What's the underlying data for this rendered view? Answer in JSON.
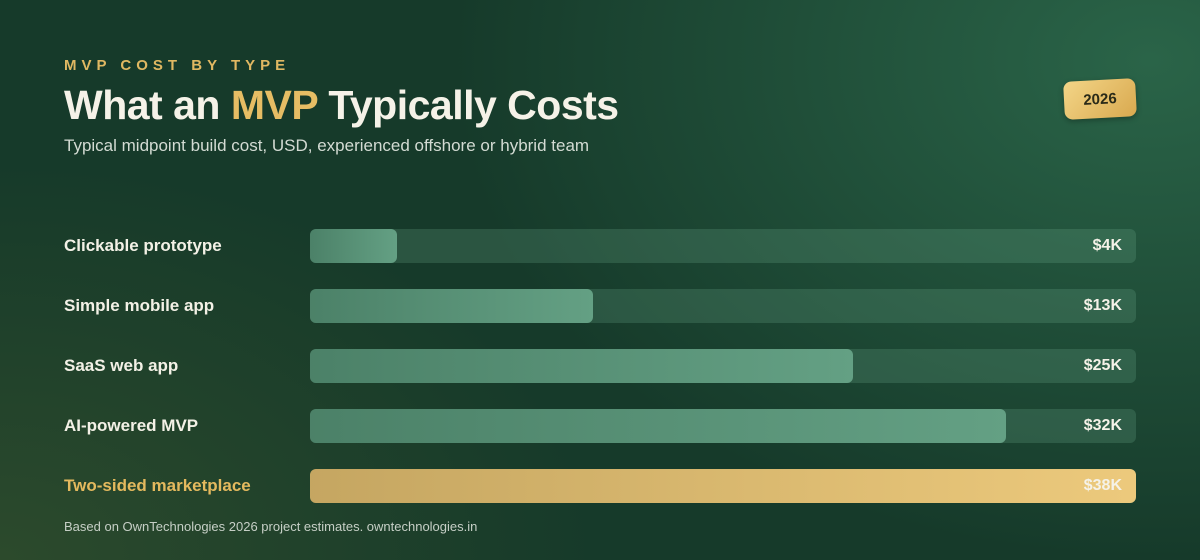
{
  "chart_data": {
    "type": "bar",
    "kicker": "MVP COST BY TYPE",
    "title": [
      "What an",
      "MVP",
      "Typically Costs"
    ],
    "subtitle": "Typical midpoint build cost, USD, experienced offshore or hybrid team",
    "badge": "2026",
    "categories": [
      "Clickable prototype",
      "Simple mobile app",
      "SaaS web app",
      "AI-powered MVP",
      "Two-sided marketplace"
    ],
    "values": [
      4,
      13,
      25,
      32,
      38
    ],
    "value_labels": [
      "$4K",
      "$13K",
      "$25K",
      "$32K",
      "$38K"
    ],
    "colors": [
      "#5a9a7c",
      "#5a9a7c",
      "#5a9a7c",
      "#5a9a7c",
      "#ebc674"
    ],
    "label_colors": [
      "#f3f1e6",
      "#f3f1e6",
      "#f3f1e6",
      "#f3f1e6",
      "#e4b95e"
    ],
    "xlim": [
      0,
      38
    ],
    "source": "Based on OwnTechnologies 2026 project estimates. owntechnologies.in"
  }
}
